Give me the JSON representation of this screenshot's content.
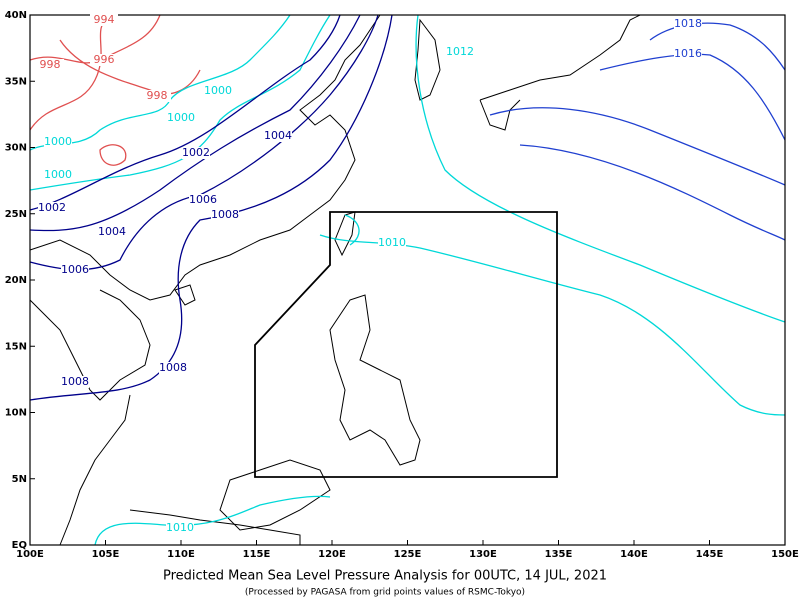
{
  "map": {
    "title": "Predicted Mean Sea Level Pressure Analysis for 00UTC, 14 JUL, 2021",
    "subtitle": "(Processed by PAGASA from grid points values of RSMC-Tokyo)",
    "lon_labels": [
      "100E",
      "105E",
      "110E",
      "115E",
      "120E",
      "125E",
      "130E",
      "135E",
      "140E",
      "145E",
      "150E"
    ],
    "lat_labels": [
      "EQ",
      "5N",
      "10N",
      "15N",
      "20N",
      "25N",
      "30N",
      "35N",
      "40N"
    ],
    "isobar_labels": [
      {
        "label": "994",
        "color": "#e05050"
      },
      {
        "label": "996",
        "color": "#e05050"
      },
      {
        "label": "998",
        "color": "#e05050"
      },
      {
        "label": "998",
        "color": "#e05050"
      },
      {
        "label": "1000",
        "color": "#00d8d8"
      },
      {
        "label": "1000",
        "color": "#00d8d8"
      },
      {
        "label": "1000",
        "color": "#00d8d8"
      },
      {
        "label": "1000",
        "color": "#00d8d8"
      },
      {
        "label": "1002",
        "color": "#00008b"
      },
      {
        "label": "1004",
        "color": "#00008b"
      },
      {
        "label": "1002",
        "color": "#00008b"
      },
      {
        "label": "1004",
        "color": "#00008b"
      },
      {
        "label": "1006",
        "color": "#00008b"
      },
      {
        "label": "1008",
        "color": "#00008b"
      },
      {
        "label": "1006",
        "color": "#00008b"
      },
      {
        "label": "1008",
        "color": "#00008b"
      },
      {
        "label": "1008",
        "color": "#00008b"
      },
      {
        "label": "1010",
        "color": "#00d8d8"
      },
      {
        "label": "1010",
        "color": "#00d8d8"
      },
      {
        "label": "1012",
        "color": "#00d8d8"
      },
      {
        "label": "1018",
        "color": "#2040d0"
      },
      {
        "label": "1016",
        "color": "#2040d0"
      }
    ]
  }
}
